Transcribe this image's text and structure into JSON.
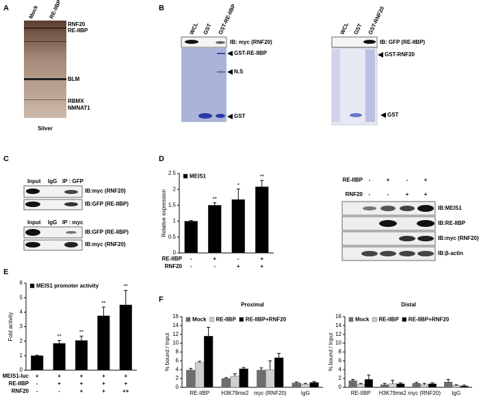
{
  "chart_data": [
    {
      "type": "bar",
      "ylabel": "Relative expression",
      "ylim": [
        0,
        2.5
      ],
      "yticks": [
        0,
        0.5,
        1,
        1.5,
        2,
        2.5
      ],
      "series": [
        {
          "name": "MEIS1",
          "color": "#000000",
          "values": [
            1,
            1.5,
            1.68,
            2.08
          ],
          "errors": [
            0.02,
            0.08,
            0.33,
            0.2
          ]
        }
      ],
      "annotations": [
        null,
        "**",
        "*",
        "**"
      ],
      "conditions": [
        {
          "label": "RE-IIBP",
          "marks": [
            "-",
            "+",
            "-",
            "+"
          ]
        },
        {
          "label": "RNF20",
          "marks": [
            "-",
            "-",
            "+",
            "+"
          ]
        }
      ]
    },
    {
      "type": "bar",
      "ylabel": "Fold activity",
      "ylim": [
        0,
        6
      ],
      "yticks": [
        0,
        1,
        2,
        3,
        4,
        5,
        6
      ],
      "series": [
        {
          "name": "MEIS1 promoter activity",
          "color": "#000000",
          "values": [
            1,
            1.85,
            2.05,
            3.75,
            4.5
          ],
          "errors": [
            0.03,
            0.2,
            0.3,
            0.6,
            1.0
          ]
        }
      ],
      "annotations": [
        null,
        "**",
        "**",
        "**",
        "**"
      ],
      "conditions": [
        {
          "label": "MEIS1-luc",
          "marks": [
            "+",
            "+",
            "+",
            "+",
            "+"
          ]
        },
        {
          "label": "RE-IIBP",
          "marks": [
            "-",
            "+",
            "+",
            "+",
            "+"
          ]
        },
        {
          "label": "RNF20",
          "marks": [
            "-",
            "-",
            "+",
            "+",
            "++"
          ]
        }
      ]
    },
    {
      "type": "bar",
      "title": "Proximal",
      "ylabel": "% bound / Input",
      "ylim": [
        0,
        16
      ],
      "yticks": [
        0,
        2,
        4,
        6,
        8,
        10,
        12,
        14,
        16
      ],
      "categories": [
        "RE-IIBP",
        "H3K79me2",
        "myc (RNF20)",
        "IgG"
      ],
      "series": [
        {
          "name": "Mock",
          "color": "#6e6e6e",
          "values": [
            3.9,
            2.0,
            3.9,
            1.0
          ],
          "errors": [
            0.4,
            0.2,
            0.5,
            0.2
          ]
        },
        {
          "name": "RE-IIBP",
          "color": "#cfcfcf",
          "values": [
            5.6,
            2.5,
            4.0,
            0.7
          ],
          "errors": [
            0.3,
            0.6,
            2.0,
            0.2
          ]
        },
        {
          "name": "RE-IIBP+RNF20",
          "color": "#000000",
          "values": [
            11.6,
            4.2,
            6.7,
            1.1
          ],
          "errors": [
            2.0,
            0.3,
            1.0,
            0.2
          ]
        }
      ]
    },
    {
      "type": "bar",
      "title": "Distal",
      "ylabel": "% bound / Input",
      "ylim": [
        0,
        16
      ],
      "yticks": [
        0,
        2,
        4,
        6,
        8,
        10,
        12,
        14,
        16
      ],
      "categories": [
        "RE-IIBP",
        "H3K79me2",
        "myc (RNF20)",
        "IgG"
      ],
      "series": [
        {
          "name": "Mock",
          "color": "#6e6e6e",
          "values": [
            1.5,
            0.6,
            0.9,
            1.2
          ],
          "errors": [
            0.3,
            0.3,
            0.2,
            0.6
          ]
        },
        {
          "name": "RE-IIBP",
          "color": "#cfcfcf",
          "values": [
            0.7,
            0.8,
            0.6,
            0.4
          ],
          "errors": [
            0.2,
            0.8,
            0.3,
            0.2
          ]
        },
        {
          "name": "RE-IIBP+RNF20",
          "color": "#000000",
          "values": [
            1.8,
            0.8,
            0.8,
            0.3
          ],
          "errors": [
            1.0,
            0.2,
            0.2,
            0.2
          ]
        }
      ]
    }
  ],
  "panels": {
    "letters": [
      "A",
      "B",
      "C",
      "D",
      "E",
      "F"
    ],
    "a": {
      "lanes": [
        "Mock",
        "RE-IIBP"
      ],
      "bands": [
        "RNF20",
        "RE-IIBP",
        "BLM",
        "RBMX",
        "NMNAT1"
      ],
      "stain": "Silver"
    },
    "b_left": {
      "lanes": [
        "WCL",
        "GST",
        "GST-RE-IIBP"
      ],
      "blot": "IB: myc (RNF20)",
      "bands": [
        "GST-RE-IIBP",
        "N.S",
        "GST"
      ]
    },
    "b_right": {
      "lanes": [
        "WCL",
        "GST",
        "GST-RNF20"
      ],
      "blot": "IB: GFP (RE-IIBP)",
      "bands": [
        "GST-RNF20",
        "GST"
      ]
    },
    "c_top": {
      "lanes": [
        "Input",
        "IgG",
        "IP : GFP"
      ],
      "blots": [
        "IB:myc (RNF20)",
        "IB:GFP (RE-IIBP)"
      ]
    },
    "c_bottom": {
      "lanes": [
        "Input",
        "IgG",
        "IP : myc"
      ],
      "blots": [
        "IB:GFP (RE-IIBP)",
        "IB:myc (RNF20)"
      ]
    },
    "d_western": {
      "conditions": [
        {
          "label": "RE-IIBP",
          "marks": [
            "-",
            "+",
            "-",
            "+"
          ]
        },
        {
          "label": "RNF20",
          "marks": [
            "-",
            "-",
            "+",
            "+"
          ]
        }
      ],
      "blots": [
        "IB:MEIS1",
        "IB:RE-IIBP",
        "IB:myc (RNF20)",
        "IB:β-actin"
      ]
    }
  }
}
